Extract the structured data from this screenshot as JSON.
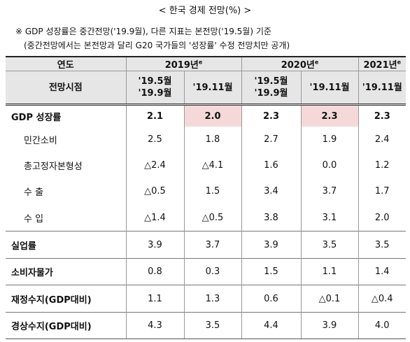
{
  "header": {
    "title": "< 한국 경제 전망(%) >",
    "notes": [
      "※ GDP 성장률은 중간전망('19.9월), 다른 지표는 본전망('19.5월) 기준",
      "(중간전망에서는 본전망과 달리 G20 국가들의 '성장률' 수정 전망치만 공개)"
    ]
  },
  "table": {
    "year_label": "연도",
    "years": [
      {
        "text": "2019년",
        "sup": "e"
      },
      {
        "text": "2020년",
        "sup": "e"
      },
      {
        "text": "2021년",
        "sup": "e"
      }
    ],
    "forecast_label": "전망시점",
    "forecasts": [
      [
        "'19.5월",
        "'19.9월"
      ],
      [
        "'19.11월"
      ],
      [
        "'19.5월",
        "'19.9월"
      ],
      [
        "'19.11월"
      ],
      [
        "'19.11월"
      ]
    ],
    "rows": [
      [
        "GDP 성장률",
        "2.1",
        "2.0",
        "2.3",
        "2.3",
        "2.3"
      ],
      [
        "민간소비",
        "2.5",
        "1.8",
        "2.7",
        "1.9",
        "2.4"
      ],
      [
        "총고정자본형성",
        "△2.4",
        "△4.1",
        "1.6",
        "0.0",
        "1.2"
      ],
      [
        "수   출",
        "△0.5",
        "1.5",
        "3.4",
        "3.7",
        "1.7"
      ],
      [
        "수   입",
        "△1.4",
        "△0.5",
        "3.8",
        "3.1",
        "2.0"
      ],
      [
        "실업률",
        "3.9",
        "3.7",
        "3.9",
        "3.5",
        "3.5"
      ],
      [
        "소비자물가",
        "0.8",
        "0.3",
        "1.5",
        "1.1",
        "1.4"
      ],
      [
        "재정수지(GDP대비)",
        "1.1",
        "1.3",
        "0.6",
        "△0.1",
        "△0.4"
      ],
      [
        "경상수지(GDP대비)",
        "4.3",
        "3.5",
        "4.4",
        "3.9",
        "4.0"
      ]
    ]
  }
}
